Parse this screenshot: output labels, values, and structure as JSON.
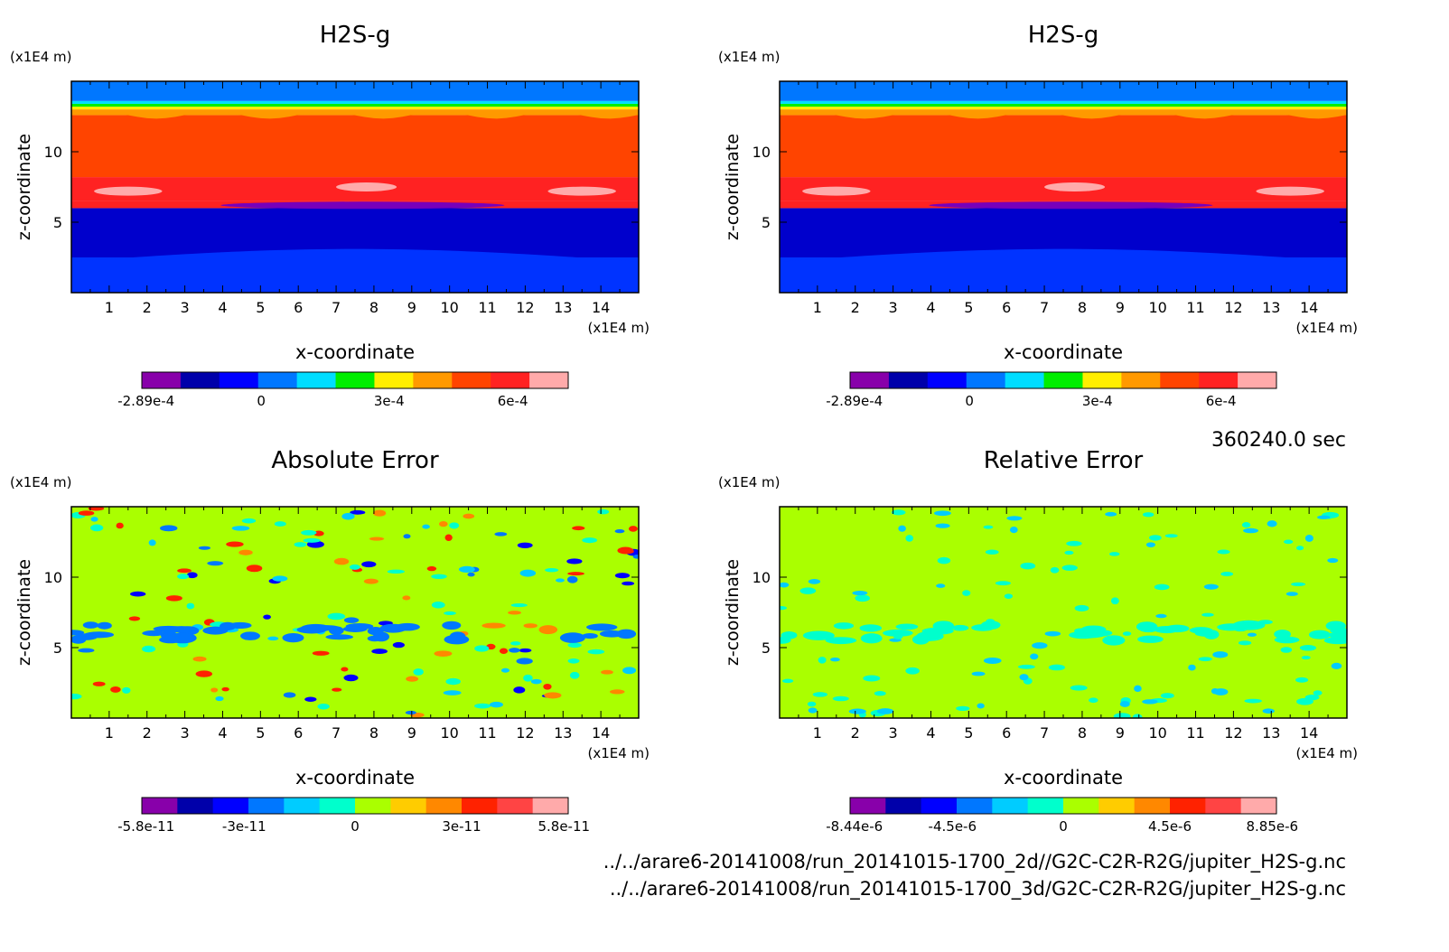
{
  "timestamp": "360240.0 sec",
  "file_paths": [
    "../../arare6-20141008/run_20141015-1700_2d//G2C-C2R-R2G/jupiter_H2S-g.nc",
    "../../arare6-20141008/run_20141015-1700_3d/G2C-C2R-R2G/jupiter_H2S-g.nc"
  ],
  "chart_data": [
    {
      "type": "heatmap",
      "title": "H2S-g",
      "xlabel": "x-coordinate",
      "ylabel": "z-coordinate",
      "x_unit": "(x1E4 m)",
      "y_unit": "(x1E4 m)",
      "xlim": [
        0,
        15
      ],
      "ylim": [
        0,
        15
      ],
      "x_ticks": [
        "1",
        "2",
        "3",
        "4",
        "5",
        "6",
        "7",
        "8",
        "9",
        "10",
        "11",
        "12",
        "13",
        "14"
      ],
      "y_ticks": [
        "5",
        "10"
      ],
      "colorbar": {
        "colors": [
          "#8800aa",
          "#0000aa",
          "#0000ff",
          "#0077ff",
          "#00ddff",
          "#00ee00",
          "#ffee00",
          "#ff9900",
          "#ff4400",
          "#ff2222",
          "#ffaaaa"
        ],
        "tick_labels": [
          "-2.89e-4",
          "0",
          "3e-4",
          "6e-4"
        ]
      },
      "bands": [
        {
          "z": [
            0,
            2.5
          ],
          "color": "#0033ff"
        },
        {
          "z": [
            2.5,
            6.0
          ],
          "color": "#0000cc"
        },
        {
          "z": [
            6.0,
            6.5
          ],
          "color": "#ff2222"
        },
        {
          "z": [
            6.5,
            8.2
          ],
          "color": "#ff2222"
        },
        {
          "z": [
            8.2,
            12.6
          ],
          "color": "#ff4400"
        },
        {
          "z": [
            12.6,
            13.0
          ],
          "color": "#ff9900"
        },
        {
          "z": [
            13.0,
            13.2
          ],
          "color": "#ffee00"
        },
        {
          "z": [
            13.2,
            13.4
          ],
          "color": "#00ee00"
        },
        {
          "z": [
            13.4,
            13.6
          ],
          "color": "#00ddff"
        },
        {
          "z": [
            13.6,
            15
          ],
          "color": "#0077ff"
        }
      ]
    },
    {
      "type": "heatmap",
      "title": "H2S-g",
      "xlabel": "x-coordinate",
      "ylabel": "z-coordinate",
      "x_unit": "(x1E4 m)",
      "y_unit": "(x1E4 m)",
      "xlim": [
        0,
        15
      ],
      "ylim": [
        0,
        15
      ],
      "x_ticks": [
        "1",
        "2",
        "3",
        "4",
        "5",
        "6",
        "7",
        "8",
        "9",
        "10",
        "11",
        "12",
        "13",
        "14"
      ],
      "y_ticks": [
        "5",
        "10"
      ],
      "colorbar": {
        "colors": [
          "#8800aa",
          "#0000aa",
          "#0000ff",
          "#0077ff",
          "#00ddff",
          "#00ee00",
          "#ffee00",
          "#ff9900",
          "#ff4400",
          "#ff2222",
          "#ffaaaa"
        ],
        "tick_labels": [
          "-2.89e-4",
          "0",
          "3e-4",
          "6e-4"
        ]
      },
      "bands": [
        {
          "z": [
            0,
            2.5
          ],
          "color": "#0033ff"
        },
        {
          "z": [
            2.5,
            6.0
          ],
          "color": "#0000cc"
        },
        {
          "z": [
            6.0,
            6.5
          ],
          "color": "#ff2222"
        },
        {
          "z": [
            6.5,
            8.2
          ],
          "color": "#ff2222"
        },
        {
          "z": [
            8.2,
            12.6
          ],
          "color": "#ff4400"
        },
        {
          "z": [
            12.6,
            13.0
          ],
          "color": "#ff9900"
        },
        {
          "z": [
            13.0,
            13.2
          ],
          "color": "#ffee00"
        },
        {
          "z": [
            13.2,
            13.4
          ],
          "color": "#00ee00"
        },
        {
          "z": [
            13.4,
            13.6
          ],
          "color": "#00ddff"
        },
        {
          "z": [
            13.6,
            15
          ],
          "color": "#0077ff"
        }
      ]
    },
    {
      "type": "heatmap",
      "title": "Absolute Error",
      "xlabel": "x-coordinate",
      "ylabel": "z-coordinate",
      "x_unit": "(x1E4 m)",
      "y_unit": "(x1E4 m)",
      "xlim": [
        0,
        15
      ],
      "ylim": [
        0,
        15
      ],
      "x_ticks": [
        "1",
        "2",
        "3",
        "4",
        "5",
        "6",
        "7",
        "8",
        "9",
        "10",
        "11",
        "12",
        "13",
        "14"
      ],
      "y_ticks": [
        "5",
        "10"
      ],
      "colorbar": {
        "colors": [
          "#8800aa",
          "#0000aa",
          "#0000ff",
          "#0077ff",
          "#00ccff",
          "#00ffcc",
          "#aaff00",
          "#ffcc00",
          "#ff8800",
          "#ff2200",
          "#ff4444",
          "#ffaaaa"
        ],
        "tick_labels": [
          "-5.8e-11",
          "-3e-11",
          "0",
          "3e-11",
          "5.8e-11"
        ]
      },
      "background": "#aaff00"
    },
    {
      "type": "heatmap",
      "title": "Relative Error",
      "xlabel": "x-coordinate",
      "ylabel": "z-coordinate",
      "x_unit": "(x1E4 m)",
      "y_unit": "(x1E4 m)",
      "xlim": [
        0,
        15
      ],
      "ylim": [
        0,
        15
      ],
      "x_ticks": [
        "1",
        "2",
        "3",
        "4",
        "5",
        "6",
        "7",
        "8",
        "9",
        "10",
        "11",
        "12",
        "13",
        "14"
      ],
      "y_ticks": [
        "5",
        "10"
      ],
      "colorbar": {
        "colors": [
          "#8800aa",
          "#0000aa",
          "#0000ff",
          "#0077ff",
          "#00ccff",
          "#00ffcc",
          "#aaff00",
          "#ffcc00",
          "#ff8800",
          "#ff2200",
          "#ff4444",
          "#ffaaaa"
        ],
        "tick_labels": [
          "-8.44e-6",
          "-4.5e-6",
          "0",
          "4.5e-6",
          "8.85e-6"
        ]
      },
      "background": "#aaff00"
    }
  ]
}
